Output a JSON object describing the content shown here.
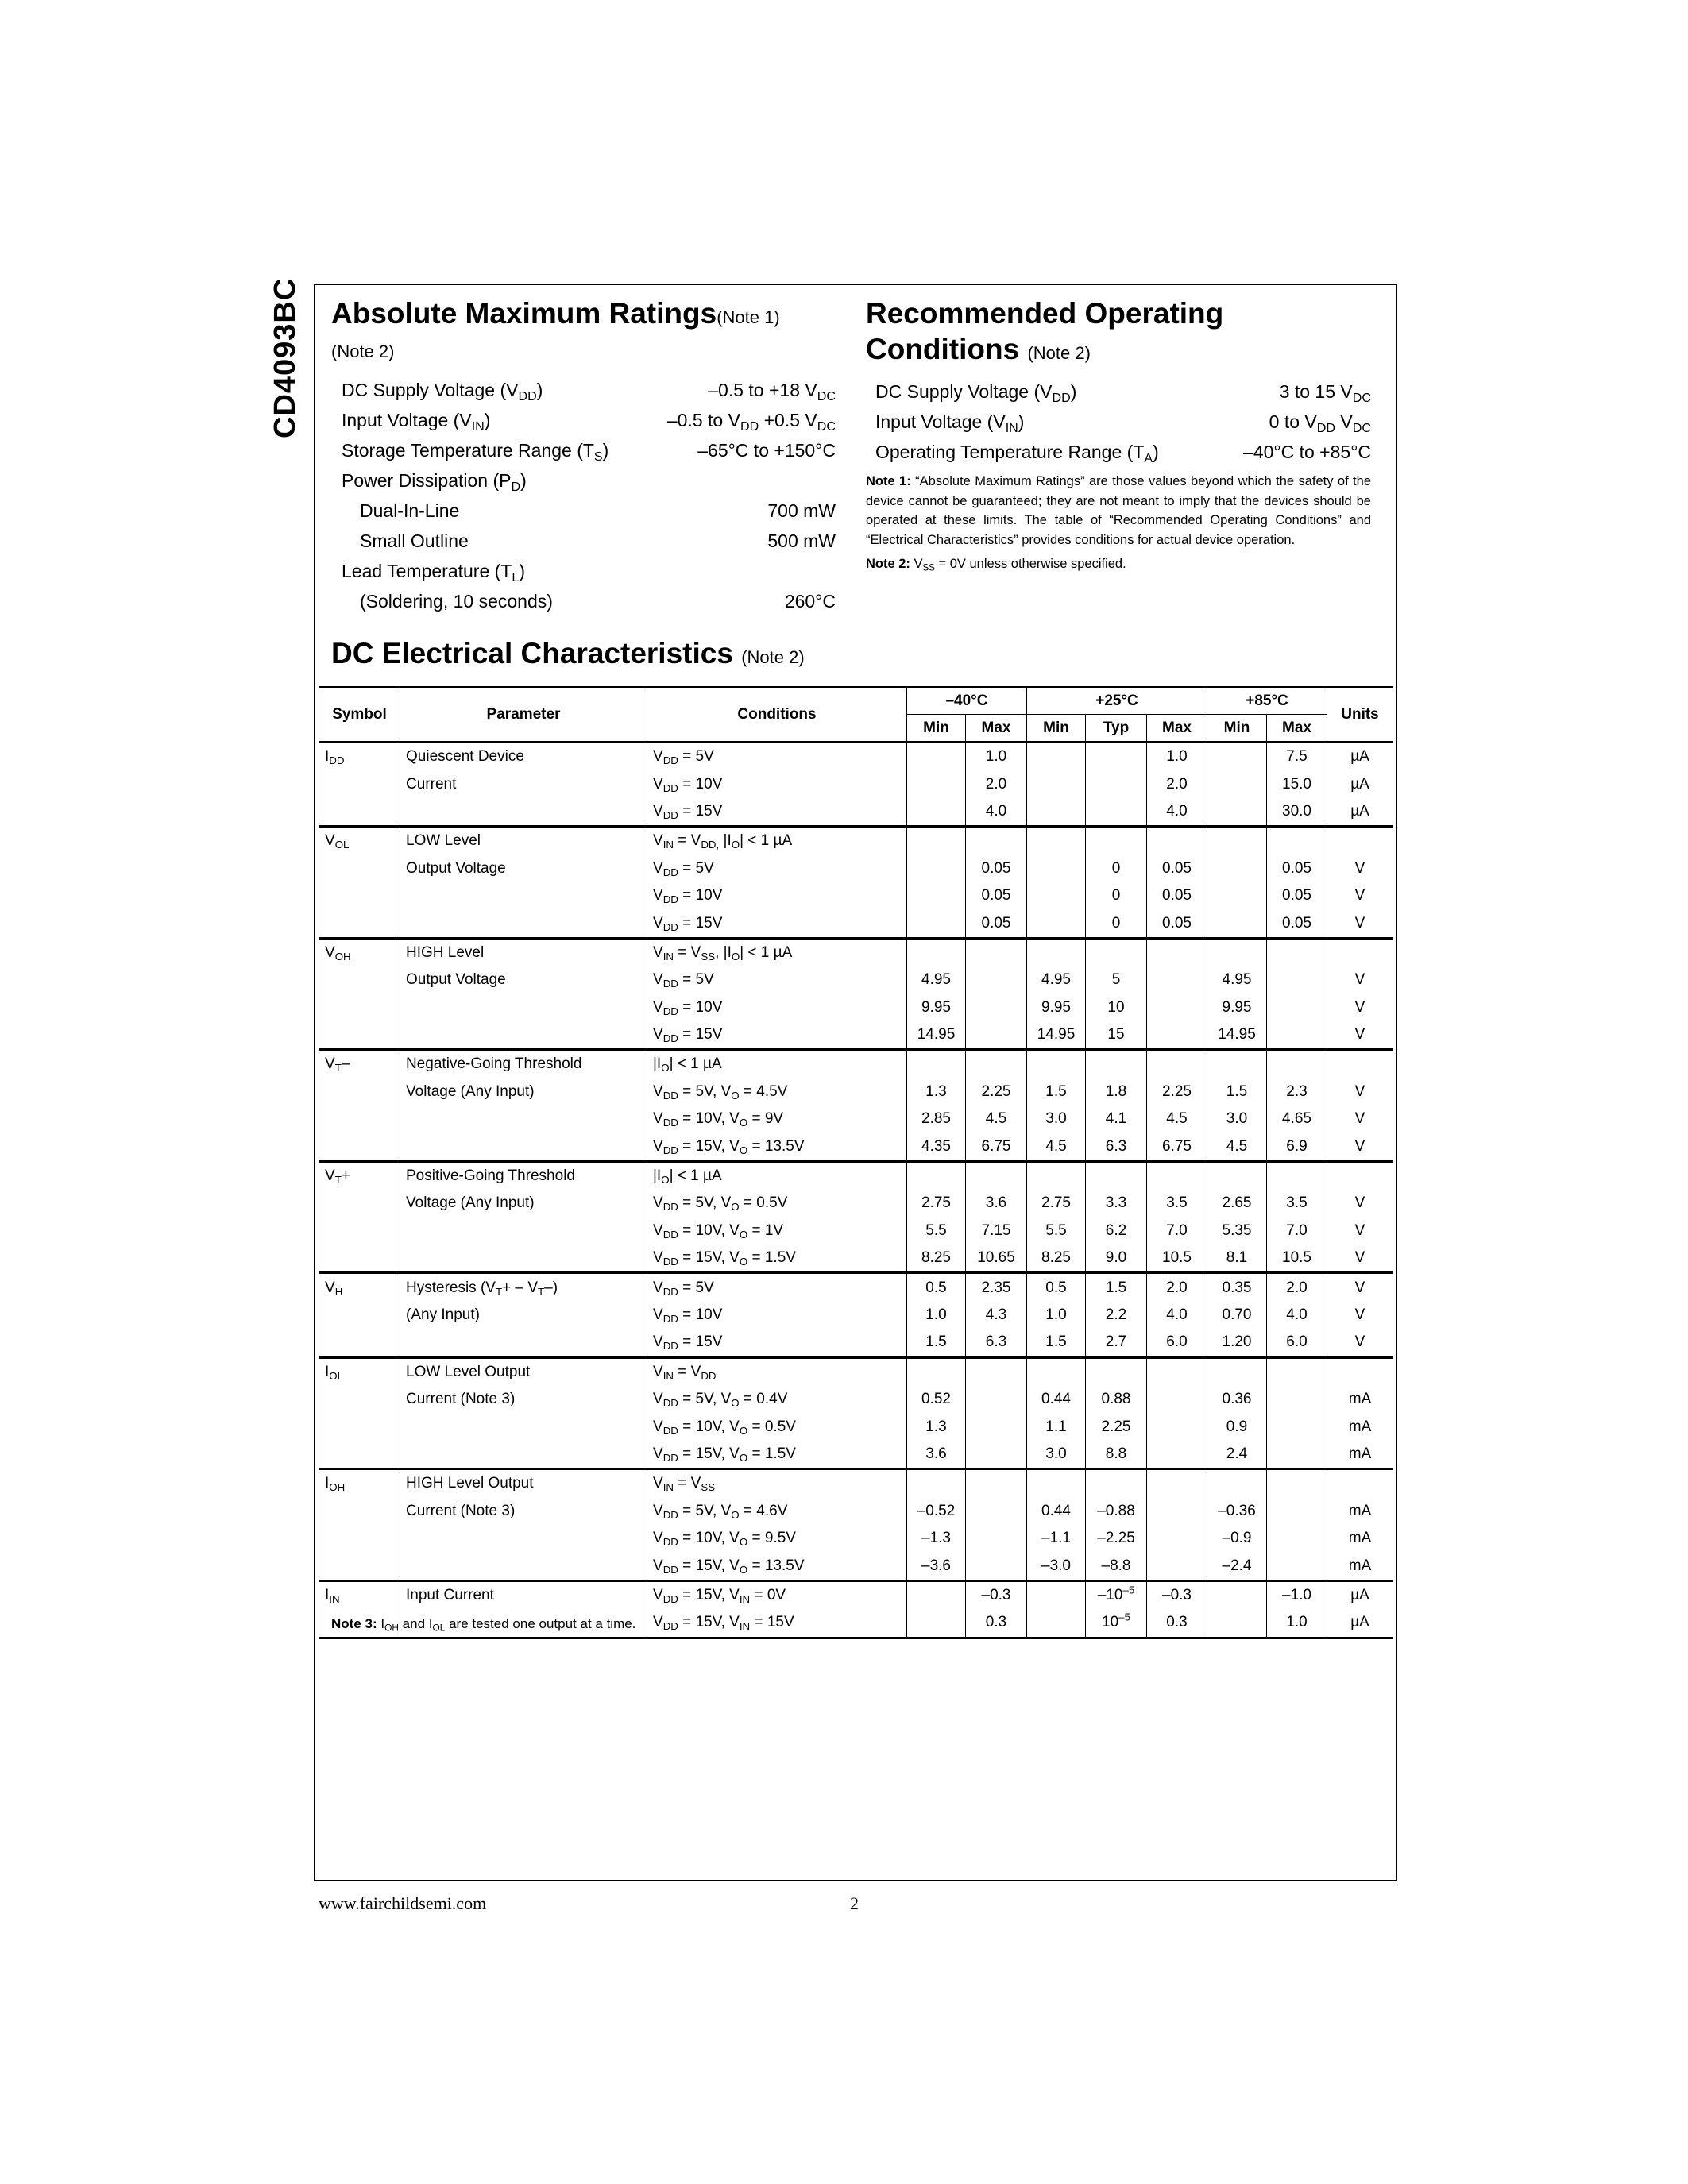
{
  "side_title": "CD4093BC",
  "abs_max": {
    "title": "Absolute Maximum Ratings",
    "title_note": "(Note 1)",
    "note": "(Note 2)",
    "rows": [
      {
        "label": "DC Supply Voltage (V_{DD})",
        "value": "–0.5 to +18 V_{DC}",
        "indent": false
      },
      {
        "label": "Input Voltage (V_{IN})",
        "value": "–0.5 to V_{DD} +0.5 V_{DC}",
        "indent": false
      },
      {
        "label": "Storage Temperature Range (T_{S})",
        "value": "–65°C to +150°C",
        "indent": false
      },
      {
        "label": "Power Dissipation (P_{D})",
        "value": "",
        "indent": false
      },
      {
        "label": "Dual-In-Line",
        "value": "700 mW",
        "indent": true
      },
      {
        "label": "Small Outline",
        "value": "500 mW",
        "indent": true
      },
      {
        "label": "Lead Temperature (T_{L})",
        "value": "",
        "indent": false
      },
      {
        "label": "(Soldering, 10 seconds)",
        "value": "260°C",
        "indent": true
      }
    ]
  },
  "rec_op": {
    "title_line1": "Recommended Operating",
    "title_line2": "Conditions",
    "title_note": "(Note 2)",
    "rows": [
      {
        "label": "DC Supply Voltage (V_{DD})",
        "value": "3 to 15 V_{DC}"
      },
      {
        "label": "Input Voltage (V_{IN})",
        "value": "0 to V_{DD} V_{DC}"
      },
      {
        "label": "Operating Temperature Range (T_{A})",
        "value": "–40°C to +85°C"
      }
    ],
    "note1_label": "Note 1:",
    "note1_text": "“Absolute Maximum Ratings” are those values beyond which the safety of the device cannot be guaranteed; they are not meant to imply that the devices should be operated at these limits. The table of “Recommended Operating Conditions” and “Electrical Characteristics” provides conditions for actual device operation.",
    "note2_label": "Note 2:",
    "note2_text": "V_{SS} = 0V unless otherwise specified."
  },
  "dc": {
    "title": "DC Electrical Characteristics",
    "title_note": "(Note 2)",
    "headers": {
      "symbol": "Symbol",
      "parameter": "Parameter",
      "conditions": "Conditions",
      "t1": "–40°C",
      "t2": "+25°C",
      "t3": "+85°C",
      "units": "Units",
      "sub": [
        "Min",
        "Max",
        "Min",
        "Typ",
        "Max",
        "Min",
        "Max"
      ]
    },
    "groups": [
      {
        "symbol": "I_{DD}",
        "param": [
          "Quiescent Device",
          "Current"
        ],
        "rows": [
          {
            "cond": "V_{DD} = 5V",
            "vals": [
              "",
              "1.0",
              "",
              "",
              "1.0",
              "",
              "7.5"
            ],
            "unit": "µA"
          },
          {
            "cond": "V_{DD} = 10V",
            "vals": [
              "",
              "2.0",
              "",
              "",
              "2.0",
              "",
              "15.0"
            ],
            "unit": "µA"
          },
          {
            "cond": "V_{DD} = 15V",
            "vals": [
              "",
              "4.0",
              "",
              "",
              "4.0",
              "",
              "30.0"
            ],
            "unit": "µA"
          }
        ]
      },
      {
        "symbol": "V_{OL}",
        "param": [
          "LOW Level",
          "Output Voltage"
        ],
        "rows": [
          {
            "cond": "V_{IN} = V_{DD,} |I_{O}| < 1 µA",
            "vals": [
              "",
              "",
              "",
              "",
              "",
              "",
              ""
            ],
            "unit": ""
          },
          {
            "cond": "V_{DD} = 5V",
            "vals": [
              "",
              "0.05",
              "",
              "0",
              "0.05",
              "",
              "0.05"
            ],
            "unit": "V"
          },
          {
            "cond": "V_{DD} = 10V",
            "vals": [
              "",
              "0.05",
              "",
              "0",
              "0.05",
              "",
              "0.05"
            ],
            "unit": "V"
          },
          {
            "cond": "V_{DD} = 15V",
            "vals": [
              "",
              "0.05",
              "",
              "0",
              "0.05",
              "",
              "0.05"
            ],
            "unit": "V"
          }
        ]
      },
      {
        "symbol": "V_{OH}",
        "param": [
          "HIGH Level",
          "Output Voltage"
        ],
        "rows": [
          {
            "cond": "V_{IN} = V_{SS}, |I_{O}| < 1 µA",
            "vals": [
              "",
              "",
              "",
              "",
              "",
              "",
              ""
            ],
            "unit": ""
          },
          {
            "cond": "V_{DD} = 5V",
            "vals": [
              "4.95",
              "",
              "4.95",
              "5",
              "",
              "4.95",
              ""
            ],
            "unit": "V"
          },
          {
            "cond": "V_{DD} = 10V",
            "vals": [
              "9.95",
              "",
              "9.95",
              "10",
              "",
              "9.95",
              ""
            ],
            "unit": "V"
          },
          {
            "cond": "V_{DD} = 15V",
            "vals": [
              "14.95",
              "",
              "14.95",
              "15",
              "",
              "14.95",
              ""
            ],
            "unit": "V"
          }
        ]
      },
      {
        "symbol": "V_{T}–",
        "param": [
          "Negative-Going Threshold",
          "Voltage (Any Input)"
        ],
        "rows": [
          {
            "cond": "|I_{O}| < 1 µA",
            "vals": [
              "",
              "",
              "",
              "",
              "",
              "",
              ""
            ],
            "unit": ""
          },
          {
            "cond": "V_{DD} = 5V, V_{O} = 4.5V",
            "vals": [
              "1.3",
              "2.25",
              "1.5",
              "1.8",
              "2.25",
              "1.5",
              "2.3"
            ],
            "unit": "V"
          },
          {
            "cond": "V_{DD} = 10V, V_{O} = 9V",
            "vals": [
              "2.85",
              "4.5",
              "3.0",
              "4.1",
              "4.5",
              "3.0",
              "4.65"
            ],
            "unit": "V"
          },
          {
            "cond": "V_{DD} = 15V, V_{O} = 13.5V",
            "vals": [
              "4.35",
              "6.75",
              "4.5",
              "6.3",
              "6.75",
              "4.5",
              "6.9"
            ],
            "unit": "V"
          }
        ]
      },
      {
        "symbol": "V_{T}+",
        "param": [
          "Positive-Going Threshold",
          "Voltage (Any Input)"
        ],
        "rows": [
          {
            "cond": "|I_{O}| < 1 µA",
            "vals": [
              "",
              "",
              "",
              "",
              "",
              "",
              ""
            ],
            "unit": ""
          },
          {
            "cond": "V_{DD} = 5V, V_{O} = 0.5V",
            "vals": [
              "2.75",
              "3.6",
              "2.75",
              "3.3",
              "3.5",
              "2.65",
              "3.5"
            ],
            "unit": "V"
          },
          {
            "cond": "V_{DD} = 10V, V_{O} = 1V",
            "vals": [
              "5.5",
              "7.15",
              "5.5",
              "6.2",
              "7.0",
              "5.35",
              "7.0"
            ],
            "unit": "V"
          },
          {
            "cond": "V_{DD} = 15V, V_{O} = 1.5V",
            "vals": [
              "8.25",
              "10.65",
              "8.25",
              "9.0",
              "10.5",
              "8.1",
              "10.5"
            ],
            "unit": "V"
          }
        ]
      },
      {
        "symbol": "V_{H}",
        "param": [
          "Hysteresis (V_{T}+ – V_{T}–)",
          "(Any Input)"
        ],
        "rows": [
          {
            "cond": "V_{DD} = 5V",
            "vals": [
              "0.5",
              "2.35",
              "0.5",
              "1.5",
              "2.0",
              "0.35",
              "2.0"
            ],
            "unit": "V"
          },
          {
            "cond": "V_{DD} = 10V",
            "vals": [
              "1.0",
              "4.3",
              "1.0",
              "2.2",
              "4.0",
              "0.70",
              "4.0"
            ],
            "unit": "V"
          },
          {
            "cond": "V_{DD} = 15V",
            "vals": [
              "1.5",
              "6.3",
              "1.5",
              "2.7",
              "6.0",
              "1.20",
              "6.0"
            ],
            "unit": "V"
          }
        ]
      },
      {
        "symbol": "I_{OL}",
        "param": [
          "LOW Level Output",
          "Current (Note 3)"
        ],
        "rows": [
          {
            "cond": "V_{IN} = V_{DD}",
            "vals": [
              "",
              "",
              "",
              "",
              "",
              "",
              ""
            ],
            "unit": ""
          },
          {
            "cond": "V_{DD} = 5V, V_{O} = 0.4V",
            "vals": [
              "0.52",
              "",
              "0.44",
              "0.88",
              "",
              "0.36",
              ""
            ],
            "unit": "mA"
          },
          {
            "cond": "V_{DD} = 10V, V_{O} = 0.5V",
            "vals": [
              "1.3",
              "",
              "1.1",
              "2.25",
              "",
              "0.9",
              ""
            ],
            "unit": "mA"
          },
          {
            "cond": "V_{DD} = 15V, V_{O} = 1.5V",
            "vals": [
              "3.6",
              "",
              "3.0",
              "8.8",
              "",
              "2.4",
              ""
            ],
            "unit": "mA"
          }
        ]
      },
      {
        "symbol": "I_{OH}",
        "param": [
          "HIGH Level Output",
          "Current (Note 3)"
        ],
        "rows": [
          {
            "cond": "V_{IN} = V_{SS}",
            "vals": [
              "",
              "",
              "",
              "",
              "",
              "",
              ""
            ],
            "unit": ""
          },
          {
            "cond": "V_{DD} = 5V, V_{O} = 4.6V",
            "vals": [
              "–0.52",
              "",
              "0.44",
              "–0.88",
              "",
              "–0.36",
              ""
            ],
            "unit": "mA"
          },
          {
            "cond": "V_{DD} = 10V, V_{O} = 9.5V",
            "vals": [
              "–1.3",
              "",
              "–1.1",
              "–2.25",
              "",
              "–0.9",
              ""
            ],
            "unit": "mA"
          },
          {
            "cond": "V_{DD} = 15V, V_{O} = 13.5V",
            "vals": [
              "–3.6",
              "",
              "–3.0",
              "–8.8",
              "",
              "–2.4",
              ""
            ],
            "unit": "mA"
          }
        ]
      },
      {
        "symbol": "I_{IN}",
        "param": [
          "Input Current"
        ],
        "rows": [
          {
            "cond": "V_{DD} = 15V, V_{IN} = 0V",
            "vals": [
              "",
              "–0.3",
              "",
              "–10^{–5}",
              "–0.3",
              "",
              "–1.0"
            ],
            "unit": "µA"
          },
          {
            "cond": "V_{DD} = 15V, V_{IN} = 15V",
            "vals": [
              "",
              "0.3",
              "",
              "10^{–5}",
              "0.3",
              "",
              "1.0"
            ],
            "unit": "µA"
          }
        ]
      }
    ],
    "note3_label": "Note 3:",
    "note3_text": "I_{OH} and I_{OL} are tested one output at a time."
  },
  "footer": {
    "url": "www.fairchildsemi.com",
    "page": "2"
  }
}
